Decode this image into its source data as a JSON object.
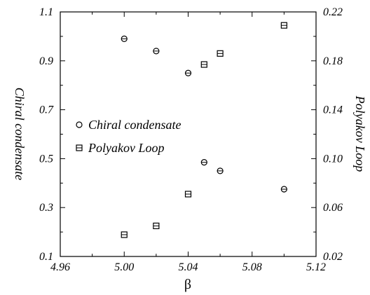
{
  "chart_data": {
    "type": "scatter",
    "xlabel": "β",
    "ylabel_left": "Chiral condensate",
    "ylabel_right": "Polyakov Loop",
    "xlim": [
      4.96,
      5.12
    ],
    "ylim_left": [
      0.1,
      1.1
    ],
    "ylim_right": [
      0.02,
      0.22
    ],
    "x_ticks": [
      "4.96",
      "5.00",
      "5.04",
      "5.08",
      "5.12"
    ],
    "y_ticks_left": [
      "0.1",
      "0.3",
      "0.5",
      "0.7",
      "0.9",
      "1.1"
    ],
    "y_ticks_right": [
      "0.02",
      "0.06",
      "0.10",
      "0.14",
      "0.18",
      "0.22"
    ],
    "grid": false,
    "legend_position": "middle-left",
    "series": [
      {
        "name": "Chiral condensate",
        "axis": "left",
        "marker": "circle",
        "x": [
          5.0,
          5.02,
          5.04,
          5.05,
          5.06,
          5.1
        ],
        "y": [
          0.99,
          0.94,
          0.85,
          0.485,
          0.45,
          0.375
        ]
      },
      {
        "name": "Polyakov Loop",
        "axis": "right",
        "marker": "square",
        "x": [
          5.0,
          5.02,
          5.04,
          5.05,
          5.06,
          5.1
        ],
        "y": [
          0.0378,
          0.045,
          0.071,
          0.177,
          0.186,
          0.209
        ]
      }
    ]
  }
}
